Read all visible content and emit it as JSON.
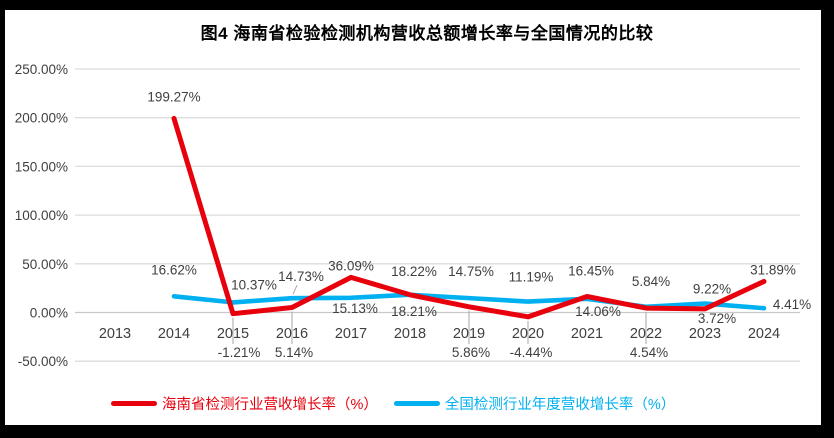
{
  "title": "图4 海南省检验检测机构营收总额增长率与全国情况的比较",
  "colors": {
    "hainan": "#e8000d",
    "national": "#00b0f0",
    "grid": "#dcdcdc",
    "zero_axis": "#c8c8c8",
    "text": "#3f3f3f",
    "title_text": "#000000",
    "leader": "#a6a6a6",
    "frame": "#000000",
    "background": "#ffffff"
  },
  "chart_data": {
    "type": "line",
    "title": "图4 海南省检验检测机构营收总额增长率与全国情况的比较",
    "categories": [
      "2013",
      "2014",
      "2015",
      "2016",
      "2017",
      "2018",
      "2019",
      "2020",
      "2021",
      "2022",
      "2023",
      "2024"
    ],
    "y_ticks": [
      "250.00%",
      "200.00%",
      "150.00%",
      "100.00%",
      "50.00%",
      "0.00%",
      "-50.00%"
    ],
    "ylim": [
      -50,
      250
    ],
    "grid": true,
    "legend_position": "bottom",
    "series": [
      {
        "name": "海南省检测行业营收增长率（%）",
        "color_key": "hainan",
        "values": [
          null,
          199.27,
          -1.21,
          5.14,
          36.09,
          18.21,
          5.86,
          -4.44,
          16.45,
          4.54,
          3.72,
          31.89
        ],
        "labels": [
          "",
          "199.27%",
          "-1.21%",
          "5.14%",
          "36.09%",
          "18.21%",
          "5.86%",
          "-4.44%",
          "16.45%",
          "4.54%",
          "3.72%",
          "31.89%"
        ]
      },
      {
        "name": "全国检测行业年度营收增长率（%）",
        "color_key": "national",
        "values": [
          null,
          16.62,
          10.37,
          14.73,
          15.13,
          18.22,
          14.75,
          11.19,
          14.06,
          5.84,
          9.22,
          4.41
        ],
        "labels": [
          "",
          "16.62%",
          "10.37%",
          "14.73%",
          "15.13%",
          "18.22%",
          "14.75%",
          "11.19%",
          "14.06%",
          "5.84%",
          "9.22%",
          "4.41%"
        ]
      }
    ]
  },
  "legend": {
    "items": [
      {
        "label": "海南省检测行业营收增长率（%）",
        "color_key": "hainan"
      },
      {
        "label": "全国检测行业年度营收增长率（%）",
        "color_key": "national"
      }
    ]
  }
}
